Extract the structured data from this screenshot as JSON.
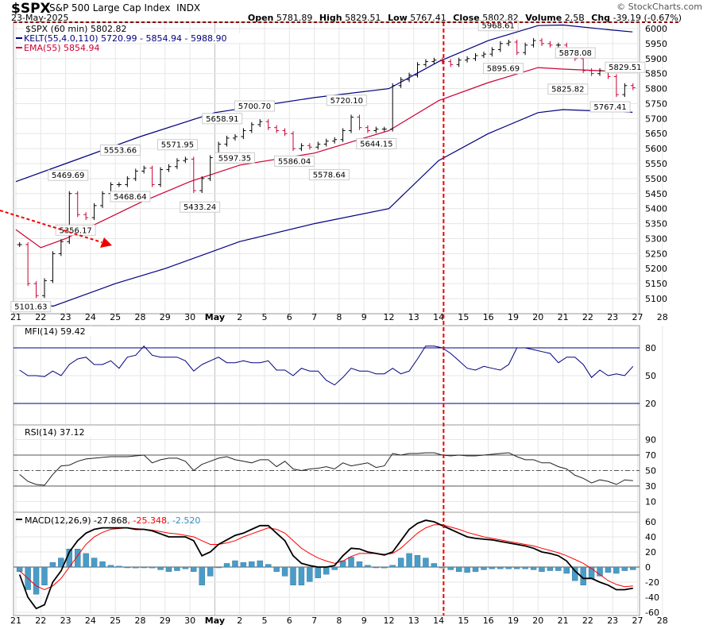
{
  "header": {
    "symbol": "$SPX",
    "name": "S&P 500 Large Cap Index",
    "exchange": "INDX",
    "date": "23-May-2025",
    "open_label": "Open",
    "open": "5781.89",
    "high_label": "High",
    "high": "5829.51",
    "low_label": "Low",
    "low": "5767.41",
    "close_label": "Close",
    "close": "5802.82",
    "volume_label": "Volume",
    "volume": "2.5B",
    "chg_label": "Chg",
    "chg": "-39.19 (-0.67%)",
    "brand": "© StockCharts.com"
  },
  "legend": {
    "price": "$SPX (60 min) 5802.82",
    "kelt": "KELT(55,4.0,110) 5720.99 - 5854.94 - 5988.90",
    "ema": "EMA(55) 5854.94",
    "mfi": "MFI(14) 59.42",
    "rsi": "RSI(14) 37.12",
    "macd_name": "MACD(12,26,9)",
    "macd_val": "-27.868",
    "macd_sig": ", -25.348",
    "macd_hist": ", -2.520"
  },
  "colors": {
    "up": "#000000",
    "down": "#cc0033",
    "kelt": "#000080",
    "ema": "#cc0033",
    "mfi": "#000080",
    "rsi": "#222222",
    "macd": "#000000",
    "signal": "#ff0000",
    "hist": "#4a9cc7",
    "marker": "#ee0000"
  },
  "chart_data": {
    "type": "line",
    "x_labels": [
      "21",
      "22",
      "23",
      "24",
      "25",
      "28",
      "29",
      "30",
      "May",
      "2",
      "5",
      "6",
      "7",
      "8",
      "9",
      "12",
      "13",
      "14",
      "15",
      "16",
      "19",
      "20",
      "21",
      "22",
      "23",
      "27",
      "28"
    ],
    "vertical_marker_index": 17.2,
    "price": {
      "ylim": [
        5075,
        6025
      ],
      "ticks": [
        5100,
        5150,
        5200,
        5250,
        5300,
        5350,
        5400,
        5450,
        5500,
        5550,
        5600,
        5650,
        5700,
        5750,
        5800,
        5850,
        5900,
        5950,
        6000
      ],
      "close": [
        [
          5280,
          5150,
          5110
        ],
        [
          5160,
          5250,
          5290
        ],
        [
          5450,
          5380,
          5370
        ],
        [
          5410,
          5450,
          5480
        ],
        [
          5480,
          5500,
          5525
        ],
        [
          5535,
          5480,
          5530
        ],
        [
          5540,
          5560,
          5565
        ],
        [
          5460,
          5500,
          5570
        ],
        [
          5615,
          5635,
          5640
        ],
        [
          5660,
          5680,
          5690
        ],
        [
          5670,
          5660,
          5650
        ],
        [
          5600,
          5610,
          5605
        ],
        [
          5615,
          5625,
          5630
        ],
        [
          5660,
          5705,
          5670
        ],
        [
          5660,
          5665,
          5665
        ],
        [
          5810,
          5830,
          5845
        ],
        [
          5880,
          5890,
          5895
        ],
        [
          5890,
          5880,
          5895
        ],
        [
          5900,
          5910,
          5915
        ],
        [
          5930,
          5950,
          5955
        ],
        [
          5920,
          5945,
          5960
        ],
        [
          5950,
          5945,
          5945
        ],
        [
          5920,
          5900,
          5860
        ],
        [
          5850,
          5860,
          5840
        ],
        [
          5780,
          5810,
          5803
        ]
      ],
      "kelt_upper": [
        [
          0,
          5490
        ],
        [
          2,
          5550
        ],
        [
          5,
          5640
        ],
        [
          8,
          5720
        ],
        [
          12,
          5770
        ],
        [
          15,
          5800
        ],
        [
          17,
          5890
        ],
        [
          19,
          5960
        ],
        [
          21,
          6010
        ],
        [
          22,
          6012
        ],
        [
          24,
          5995
        ],
        [
          24.8,
          5989
        ]
      ],
      "ema": [
        [
          0,
          5330
        ],
        [
          1,
          5270
        ],
        [
          2,
          5300
        ],
        [
          5,
          5420
        ],
        [
          7,
          5490
        ],
        [
          9,
          5545
        ],
        [
          12,
          5585
        ],
        [
          15,
          5660
        ],
        [
          17,
          5760
        ],
        [
          19,
          5820
        ],
        [
          21,
          5870
        ],
        [
          22,
          5865
        ],
        [
          24.8,
          5855
        ]
      ],
      "kelt_lower": [
        [
          0,
          5090
        ],
        [
          1.5,
          5075
        ],
        [
          4,
          5150
        ],
        [
          6,
          5200
        ],
        [
          9,
          5290
        ],
        [
          12,
          5350
        ],
        [
          15,
          5400
        ],
        [
          17,
          5560
        ],
        [
          19,
          5650
        ],
        [
          21,
          5720
        ],
        [
          22,
          5730
        ],
        [
          24.8,
          5721
        ]
      ],
      "labels": [
        [
          "5101.63",
          0.6,
          5101,
          "below"
        ],
        [
          "5356.17",
          2.4,
          5356,
          "below"
        ],
        [
          "5469.69",
          2.1,
          5470,
          "above"
        ],
        [
          "5553.66",
          4.2,
          5554,
          "above"
        ],
        [
          "5468.64",
          4.6,
          5468,
          "below"
        ],
        [
          "5571.95",
          6.5,
          5572,
          "above"
        ],
        [
          "5433.24",
          7.4,
          5433,
          "below"
        ],
        [
          "5658.91",
          8.3,
          5659,
          "above"
        ],
        [
          "5597.35",
          8.8,
          5597,
          "below"
        ],
        [
          "5700.70",
          9.6,
          5701,
          "above"
        ],
        [
          "5586.04",
          11.2,
          5586,
          "below"
        ],
        [
          "5578.64",
          12.6,
          5578,
          "below"
        ],
        [
          "5720.10",
          13.3,
          5720,
          "above"
        ],
        [
          "5644.15",
          14.5,
          5644,
          "below"
        ],
        [
          "5968.61",
          19.4,
          5969,
          "above"
        ],
        [
          "5895.69",
          19.6,
          5895,
          "below"
        ],
        [
          "5878.08",
          22.5,
          5878,
          "above"
        ],
        [
          "5825.82",
          22.2,
          5826,
          "below"
        ],
        [
          "5829.51",
          24.5,
          5830,
          "above"
        ],
        [
          "5767.41",
          23.9,
          5767,
          "below"
        ]
      ]
    },
    "mfi": {
      "ylim": [
        0,
        100
      ],
      "ticks": [
        80,
        50,
        20
      ],
      "values": [
        [
          56,
          50,
          50
        ],
        [
          49,
          55,
          50
        ],
        [
          62,
          68,
          70
        ],
        [
          62,
          62,
          66
        ],
        [
          58,
          70,
          72
        ],
        [
          82,
          72,
          70
        ],
        [
          70,
          70,
          66
        ],
        [
          55,
          62,
          66
        ],
        [
          70,
          64,
          64
        ],
        [
          66,
          64,
          64
        ],
        [
          66,
          56,
          56
        ],
        [
          50,
          58,
          55
        ],
        [
          55,
          45,
          40
        ],
        [
          48,
          58,
          55
        ],
        [
          55,
          52,
          52
        ],
        [
          58,
          52,
          55
        ],
        [
          68,
          82,
          82
        ],
        [
          80,
          74,
          66
        ],
        [
          58,
          56,
          60
        ],
        [
          58,
          56,
          62
        ],
        [
          80,
          80,
          78
        ],
        [
          76,
          74,
          64
        ],
        [
          70,
          70,
          62
        ],
        [
          48,
          56,
          50
        ],
        [
          52,
          50,
          60
        ]
      ]
    },
    "rsi": {
      "ylim": [
        0,
        100
      ],
      "ticks": [
        90,
        70,
        50,
        30,
        10
      ],
      "values": [
        [
          45,
          36,
          32
        ],
        [
          31,
          45,
          56
        ],
        [
          57,
          62,
          65
        ],
        [
          66,
          67,
          68
        ],
        [
          68,
          68,
          69
        ],
        [
          70,
          60,
          64
        ],
        [
          66,
          66,
          62
        ],
        [
          50,
          58,
          62
        ],
        [
          66,
          68,
          64
        ],
        [
          62,
          60,
          64
        ],
        [
          64,
          55,
          62
        ],
        [
          52,
          50,
          52
        ],
        [
          53,
          55,
          52
        ],
        [
          60,
          56,
          58
        ],
        [
          60,
          54,
          56
        ],
        [
          72,
          70,
          72
        ],
        [
          72,
          73,
          73
        ],
        [
          70,
          69,
          70
        ],
        [
          69,
          69,
          70
        ],
        [
          71,
          72,
          73
        ],
        [
          68,
          64,
          64
        ],
        [
          60,
          60,
          55
        ],
        [
          52,
          44,
          40
        ],
        [
          34,
          38,
          36
        ],
        [
          32,
          38,
          37
        ]
      ]
    },
    "macd": {
      "ylim": [
        -65,
        65
      ],
      "ticks": [
        60,
        40,
        20,
        0,
        -20,
        -40,
        -60
      ],
      "macd": [
        [
          -10,
          -40,
          -55
        ],
        [
          -50,
          -20,
          -5
        ],
        [
          20,
          35,
          45
        ],
        [
          50,
          52,
          52
        ],
        [
          52,
          52,
          50
        ],
        [
          50,
          48,
          44
        ],
        [
          40,
          40,
          40
        ],
        [
          35,
          15,
          20
        ],
        [
          30,
          36,
          42
        ],
        [
          45,
          50,
          55
        ],
        [
          55,
          45,
          35
        ],
        [
          15,
          5,
          2
        ],
        [
          0,
          0,
          2
        ],
        [
          15,
          25,
          24
        ],
        [
          20,
          18,
          16
        ],
        [
          20,
          35,
          50
        ],
        [
          58,
          62,
          60
        ],
        [
          55,
          50,
          45
        ],
        [
          40,
          38,
          37
        ],
        [
          36,
          34,
          32
        ],
        [
          30,
          28,
          25
        ],
        [
          20,
          18,
          15
        ],
        [
          8,
          -5,
          -15
        ],
        [
          -15,
          -20,
          -24
        ],
        [
          -30,
          -30,
          -28
        ]
      ],
      "signal": [
        [
          -5,
          -15,
          -25
        ],
        [
          -30,
          -25,
          -15
        ],
        [
          0,
          15,
          30
        ],
        [
          40,
          46,
          50
        ],
        [
          51,
          52,
          51
        ],
        [
          50,
          49,
          47
        ],
        [
          45,
          44,
          42
        ],
        [
          40,
          35,
          30
        ],
        [
          30,
          32,
          35
        ],
        [
          40,
          44,
          48
        ],
        [
          52,
          50,
          45
        ],
        [
          35,
          25,
          18
        ],
        [
          12,
          8,
          5
        ],
        [
          8,
          14,
          18
        ],
        [
          18,
          18,
          17
        ],
        [
          18,
          25,
          35
        ],
        [
          45,
          52,
          56
        ],
        [
          56,
          53,
          50
        ],
        [
          46,
          43,
          40
        ],
        [
          38,
          36,
          34
        ],
        [
          32,
          30,
          28
        ],
        [
          25,
          22,
          19
        ],
        [
          15,
          10,
          5
        ],
        [
          -2,
          -10,
          -18
        ],
        [
          -23,
          -26,
          -25
        ]
      ]
    }
  }
}
